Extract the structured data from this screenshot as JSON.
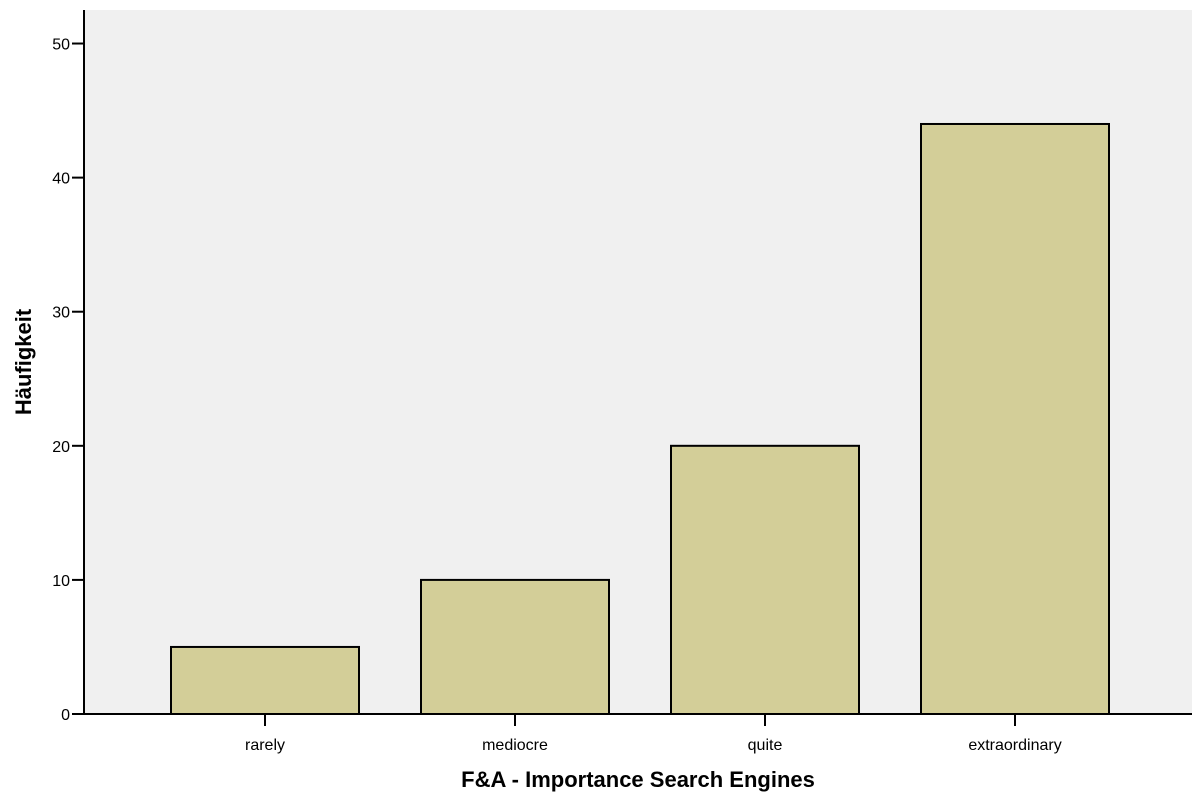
{
  "chart_data": {
    "type": "bar",
    "categories": [
      "rarely",
      "mediocre",
      "quite",
      "extraordinary"
    ],
    "values": [
      5,
      10,
      20,
      44
    ],
    "title": "",
    "xlabel": "F&A - Importance Search Engines",
    "ylabel": "Häufigkeit",
    "ylim": [
      0,
      52.5
    ],
    "yticks": [
      0,
      10,
      20,
      30,
      40,
      50
    ],
    "grid": false,
    "legend": "none"
  },
  "colors": {
    "plot_background": "#f0f0f0",
    "bar_fill": "#d3ce98",
    "bar_stroke": "#000000",
    "axis": "#000000"
  }
}
